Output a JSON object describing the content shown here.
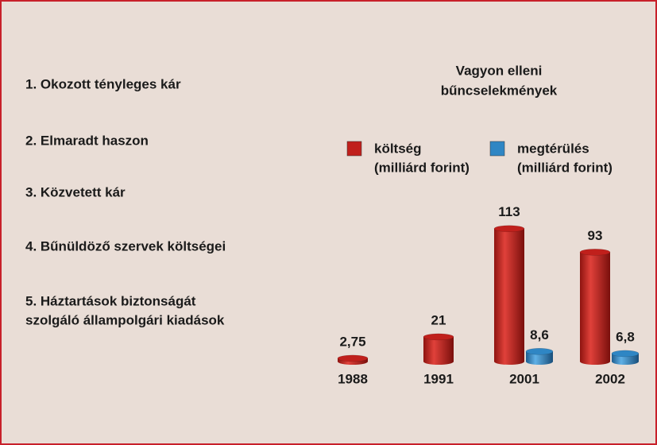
{
  "chart_data": {
    "type": "bar",
    "title": [
      "Vagyon elleni",
      "bűncselekmények"
    ],
    "notes": [
      [
        "1. Okozott tényleges kár"
      ],
      [
        "2. Elmaradt haszon"
      ],
      [
        "3. Közvetett kár"
      ],
      [
        "4. Bűnüldöző szervek költségei"
      ],
      [
        "5. Háztartások biztonságát",
        "szolgáló állampolgári kiadások"
      ]
    ],
    "categories": [
      "1988",
      "1991",
      "2001",
      "2002"
    ],
    "series": [
      {
        "name": [
          "költség",
          "(milliárd forint)"
        ],
        "color": "#c0201c",
        "values": [
          2.75,
          21,
          113,
          93
        ],
        "value_labels": [
          "2,75",
          "21",
          "113",
          "93"
        ]
      },
      {
        "name": [
          "megtérülés",
          "(milliárd forint)"
        ],
        "color": "#2f86c4",
        "values": [
          null,
          null,
          8.6,
          6.8
        ],
        "value_labels": [
          null,
          null,
          "8,6",
          "6,8"
        ]
      }
    ]
  }
}
